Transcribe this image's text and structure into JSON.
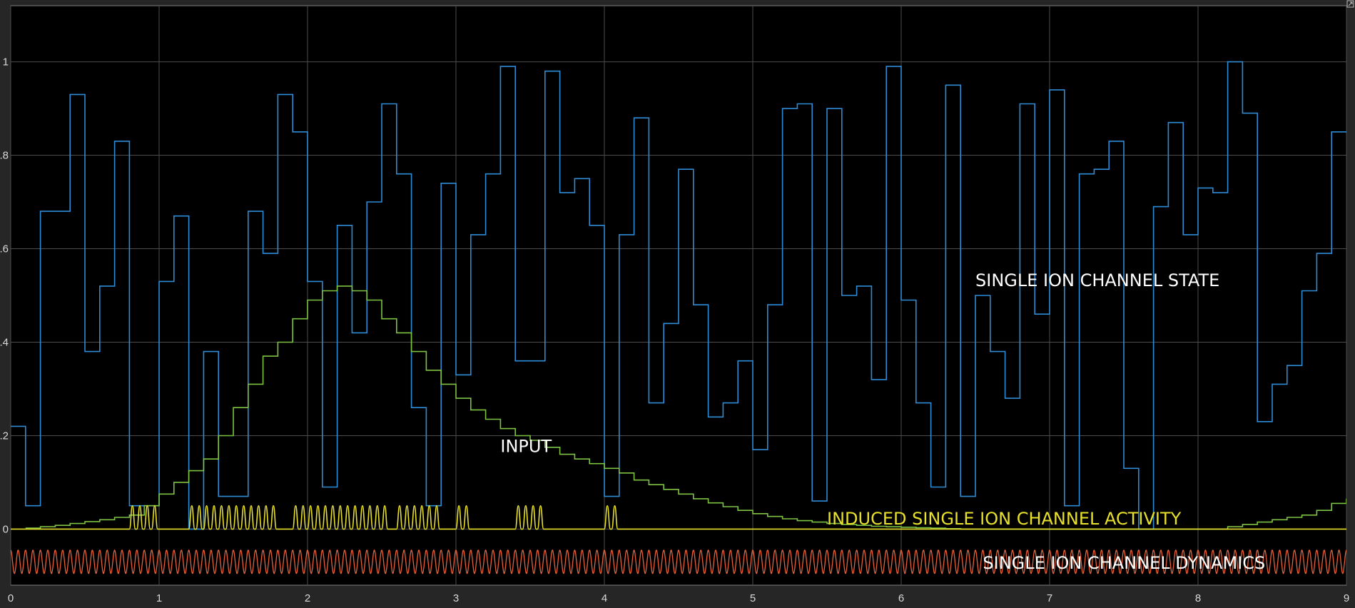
{
  "chart_data": {
    "type": "line",
    "title": "",
    "xlabel": "",
    "ylabel": "",
    "xlim": [
      0,
      9
    ],
    "ylim": [
      -0.12,
      1.12
    ],
    "x_ticks": [
      "0",
      "1",
      "2",
      "3",
      "4",
      "5",
      "6",
      "7",
      "8",
      "9"
    ],
    "y_ticks": [
      {
        "value": 0,
        "label": "0"
      },
      {
        "value": 0.2,
        "label": ".2"
      },
      {
        "value": 0.4,
        "label": ".4"
      },
      {
        "value": 0.6,
        "label": ".6"
      },
      {
        "value": 0.8,
        "label": ".8"
      },
      {
        "value": 1,
        "label": "1"
      }
    ],
    "grid": true,
    "background": "#000000",
    "grid_color": "#4d4d4d",
    "series": [
      {
        "key": "state",
        "color": "#2e8bd6",
        "step": true,
        "x": [
          0,
          0.1,
          0.2,
          0.4,
          0.5,
          0.6,
          0.7,
          0.8,
          1.0,
          1.1,
          1.2,
          1.3,
          1.4,
          1.6,
          1.7,
          1.8,
          1.9,
          2.0,
          2.1,
          2.2,
          2.3,
          2.4,
          2.5,
          2.6,
          2.7,
          2.8,
          2.9,
          3.0,
          3.1,
          3.2,
          3.3,
          3.4,
          3.6,
          3.7,
          3.8,
          3.9,
          4.0,
          4.1,
          4.2,
          4.3,
          4.4,
          4.5,
          4.6,
          4.7,
          4.8,
          4.9,
          5.0,
          5.1,
          5.2,
          5.3,
          5.4,
          5.5,
          5.6,
          5.7,
          5.8,
          5.9,
          6.0,
          6.1,
          6.2,
          6.3,
          6.4,
          6.5,
          6.6,
          6.7,
          6.8,
          6.9,
          7.0,
          7.1,
          7.2,
          7.3,
          7.4,
          7.5,
          7.6,
          7.7,
          7.8,
          7.9,
          8.0,
          8.1,
          8.2,
          8.3,
          8.4,
          8.5,
          8.6,
          8.7,
          8.8,
          8.9,
          9.0
        ],
        "y": [
          0.22,
          0.05,
          0.68,
          0.93,
          0.38,
          0.52,
          0.83,
          0.05,
          0.53,
          0.67,
          0.0,
          0.38,
          0.07,
          0.68,
          0.59,
          0.93,
          0.85,
          0.53,
          0.09,
          0.65,
          0.42,
          0.7,
          0.91,
          0.76,
          0.26,
          0.05,
          0.74,
          0.33,
          0.63,
          0.76,
          0.99,
          0.36,
          0.98,
          0.72,
          0.75,
          0.65,
          0.07,
          0.63,
          0.88,
          0.27,
          0.44,
          0.77,
          0.48,
          0.24,
          0.27,
          0.36,
          0.17,
          0.48,
          0.9,
          0.91,
          0.06,
          0.9,
          0.5,
          0.52,
          0.32,
          0.99,
          0.49,
          0.27,
          0.09,
          0.95,
          0.07,
          0.5,
          0.38,
          0.28,
          0.91,
          0.46,
          0.94,
          0.05,
          0.76,
          0.77,
          0.83,
          0.13,
          0.0,
          0.69,
          0.87,
          0.63,
          0.73,
          0.72,
          1.0,
          0.89,
          0.23,
          0.31,
          0.35,
          0.51,
          0.59,
          0.85,
          0.85
        ]
      },
      {
        "key": "input",
        "color": "#7dc242",
        "step": true,
        "x": [
          0.1,
          0.2,
          0.3,
          0.4,
          0.5,
          0.6,
          0.7,
          0.8,
          0.9,
          1.0,
          1.1,
          1.2,
          1.3,
          1.4,
          1.5,
          1.6,
          1.7,
          1.8,
          1.9,
          2.0,
          2.1,
          2.2,
          2.3,
          2.4,
          2.5,
          2.6,
          2.7,
          2.8,
          2.9,
          3.0,
          3.1,
          3.2,
          3.3,
          3.4,
          3.5,
          3.6,
          3.7,
          3.8,
          3.9,
          4.0,
          4.1,
          4.2,
          4.3,
          4.4,
          4.5,
          4.6,
          4.7,
          4.8,
          4.9,
          5.0,
          5.1,
          5.2,
          5.3,
          5.4,
          5.5,
          5.6,
          5.7,
          5.8,
          5.9,
          6.0,
          6.1,
          6.2,
          6.3,
          6.4,
          8.2,
          8.3,
          8.4,
          8.5,
          8.6,
          8.7,
          8.8,
          8.9,
          9.0
        ],
        "y": [
          0.002,
          0.005,
          0.008,
          0.012,
          0.016,
          0.02,
          0.025,
          0.03,
          0.05,
          0.075,
          0.1,
          0.125,
          0.15,
          0.2,
          0.26,
          0.31,
          0.37,
          0.4,
          0.45,
          0.49,
          0.51,
          0.52,
          0.51,
          0.49,
          0.45,
          0.42,
          0.38,
          0.34,
          0.31,
          0.28,
          0.255,
          0.235,
          0.215,
          0.2,
          0.19,
          0.175,
          0.16,
          0.15,
          0.14,
          0.13,
          0.12,
          0.105,
          0.095,
          0.085,
          0.075,
          0.065,
          0.056,
          0.048,
          0.04,
          0.033,
          0.027,
          0.022,
          0.018,
          0.015,
          0.012,
          0.01,
          0.008,
          0.006,
          0.005,
          0.004,
          0.003,
          0.002,
          0.001,
          0.0,
          0.005,
          0.01,
          0.015,
          0.02,
          0.025,
          0.03,
          0.04,
          0.055,
          0.065
        ]
      },
      {
        "key": "activity",
        "color": "#e8e02a",
        "baseline": 0.0,
        "pulse_amplitude": 0.05,
        "pulse_times": [
          0.82,
          0.87,
          0.92,
          0.97,
          1.22,
          1.27,
          1.32,
          1.37,
          1.42,
          1.47,
          1.52,
          1.57,
          1.62,
          1.67,
          1.72,
          1.77,
          1.92,
          1.97,
          2.02,
          2.07,
          2.12,
          2.17,
          2.22,
          2.27,
          2.32,
          2.37,
          2.42,
          2.47,
          2.52,
          2.62,
          2.67,
          2.72,
          2.77,
          2.82,
          2.87,
          3.02,
          3.07,
          3.42,
          3.47,
          3.52,
          3.57,
          4.02,
          4.07
        ]
      },
      {
        "key": "dynamics",
        "color": "#e8603a",
        "oscillation_period": 0.05,
        "y_low": -0.095,
        "y_high": -0.045
      }
    ],
    "annotations": [
      {
        "key": "state_label",
        "text": "SINGLE ION CHANNEL STATE",
        "x": 6.5,
        "y": 0.52,
        "color": "#ffffff"
      },
      {
        "key": "input_label",
        "text": "INPUT",
        "x": 3.3,
        "y": 0.165,
        "color": "#ffffff"
      },
      {
        "key": "activity_label",
        "text": "INDUCED SINGLE ION CHANNEL ACTIVITY",
        "x": 5.5,
        "y": 0.01,
        "color": "#e8e02a"
      },
      {
        "key": "dynamics_label",
        "text": "SINGLE ION CHANNEL DYNAMICS",
        "x": 6.55,
        "y": -0.085,
        "color": "#ffffff"
      }
    ]
  }
}
